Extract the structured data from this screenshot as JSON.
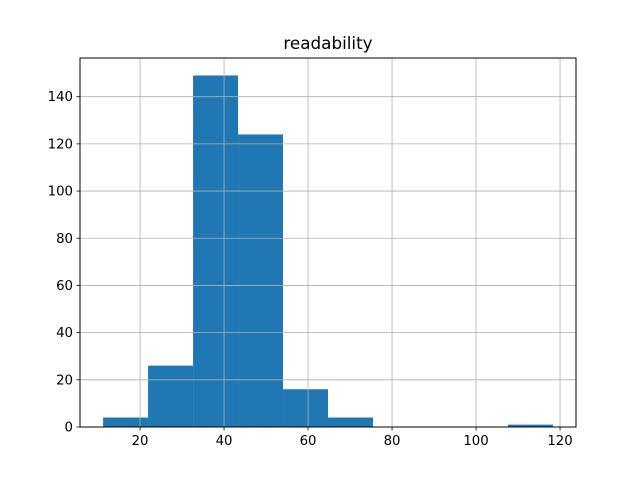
{
  "chart_data": {
    "type": "bar",
    "title": "readability",
    "xlabel": "",
    "ylabel": "",
    "bin_edges": [
      11.2,
      21.91,
      32.62,
      43.33,
      54.04,
      64.75,
      75.46,
      86.17,
      96.88,
      107.59,
      118.3
    ],
    "values": [
      4,
      26,
      149,
      124,
      16,
      4,
      0,
      0,
      0,
      1
    ],
    "xlim": [
      5.7,
      123.8
    ],
    "ylim": [
      0,
      156.4
    ],
    "xticks": [
      20,
      40,
      60,
      80,
      100,
      120
    ],
    "yticks": [
      0,
      20,
      40,
      60,
      80,
      100,
      120,
      140
    ],
    "grid": true,
    "bar_color": "#1f77b4",
    "grid_color": "#b0b0b0"
  }
}
